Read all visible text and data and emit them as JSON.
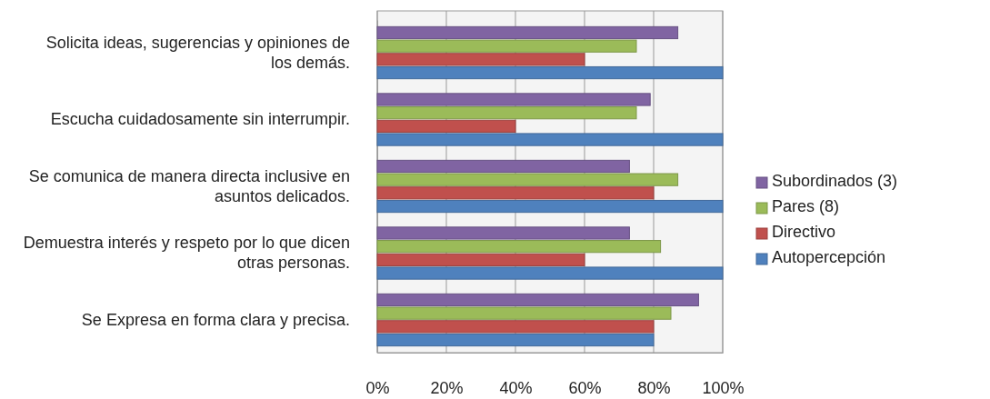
{
  "chart_data": {
    "type": "bar",
    "orientation": "horizontal",
    "categories": [
      "Solicita ideas, sugerencias y opiniones de los demás.",
      "Escucha cuidadosamente sin interrumpir.",
      "Se comunica de manera  directa inclusive en asuntos delicados.",
      "Demuestra interés y respeto por lo que dicen  otras personas.",
      "Se  Expresa en forma  clara y precisa."
    ],
    "series": [
      {
        "name": "Autopercepción",
        "color": "#4f81bd",
        "values": [
          100,
          100,
          100,
          100,
          80
        ]
      },
      {
        "name": "Directivo",
        "color": "#c0504d",
        "values": [
          60,
          40,
          80,
          60,
          80
        ]
      },
      {
        "name": "Pares (8)",
        "color": "#9bbb59",
        "values": [
          75,
          75,
          87,
          82,
          85
        ]
      },
      {
        "name": "Subordinados (3)",
        "color": "#8064a2",
        "values": [
          87,
          79,
          73,
          73,
          93
        ]
      }
    ],
    "xlim": [
      0,
      100
    ],
    "xticks": [
      {
        "value": 0,
        "label": "0%"
      },
      {
        "value": 20,
        "label": "20%"
      },
      {
        "value": 40,
        "label": "40%"
      },
      {
        "value": 60,
        "label": "60%"
      },
      {
        "value": 80,
        "label": "80%"
      },
      {
        "value": 100,
        "label": "100%"
      }
    ],
    "grid": "x",
    "legend": "right"
  }
}
